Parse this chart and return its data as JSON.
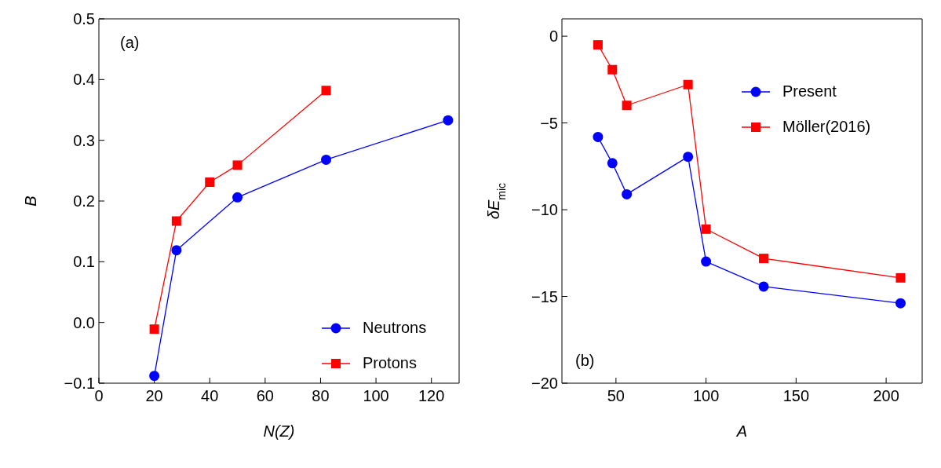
{
  "chart_data": [
    {
      "type": "line",
      "annotations": [
        "(a)"
      ],
      "xlabel": "N(Z)",
      "ylabel": "B",
      "xlim": [
        0,
        130
      ],
      "xticks": [
        0,
        20,
        40,
        60,
        80,
        100,
        120
      ],
      "ylim": [
        -0.1,
        0.5
      ],
      "yticks": [
        {
          "value": -0.1,
          "label": "−0.1"
        },
        {
          "value": 0,
          "label": "0.0"
        },
        0.1,
        0.2,
        0.3,
        0.4,
        0.5
      ],
      "legend": "bottom right",
      "grid": false,
      "series": [
        {
          "name": "Neutrons",
          "color": "#0000ff",
          "marker": "circle",
          "x": [
            20,
            28,
            50,
            82,
            126
          ],
          "values": [
            -0.088,
            0.119,
            0.206,
            0.268,
            0.333
          ]
        },
        {
          "name": "Protons",
          "color": "#ff0000",
          "marker": "square",
          "x": [
            20,
            28,
            40,
            50,
            82
          ],
          "values": [
            -0.011,
            0.167,
            0.231,
            0.259,
            0.382
          ]
        }
      ]
    },
    {
      "type": "line",
      "annotations": [
        "(b)"
      ],
      "xlabel": "A",
      "ylabel": "δE$_{mic}$",
      "xlim": [
        20,
        220
      ],
      "xticks": [
        50,
        100,
        150,
        200
      ],
      "ylim": [
        -20,
        1
      ],
      "yticks": [
        {
          "value": -20,
          "label": "−20"
        },
        {
          "value": -15,
          "label": "−15"
        },
        {
          "value": -10,
          "label": "−10"
        },
        {
          "value": -5,
          "label": "−5"
        },
        0
      ],
      "legend": "top right",
      "grid": false,
      "series": [
        {
          "name": "Present",
          "color": "#0000ff",
          "marker": "circle",
          "x": [
            40,
            48,
            56,
            90,
            100,
            132,
            208
          ],
          "values": [
            -5.81,
            -7.32,
            -9.11,
            -6.95,
            -12.99,
            -14.43,
            -15.39
          ]
        },
        {
          "name": "Möller(2016)",
          "color": "#ff0000",
          "marker": "square",
          "x": [
            40,
            48,
            56,
            90,
            100,
            132,
            208
          ],
          "values": [
            -0.5,
            -1.93,
            -3.99,
            -2.79,
            -11.12,
            -12.81,
            -13.93
          ]
        }
      ]
    }
  ]
}
